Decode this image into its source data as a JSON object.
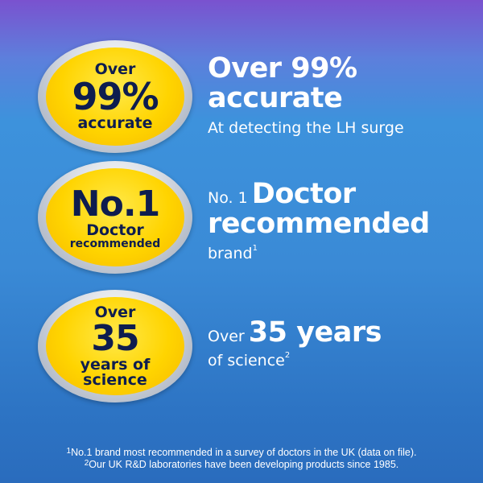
{
  "badges": [
    {
      "top": "Over",
      "big": "99%",
      "bottom": "accurate"
    },
    {
      "big": "No.1",
      "mid": "Doctor",
      "bottom": "recommended"
    },
    {
      "top": "Over",
      "big": "35",
      "mid": "years of",
      "bottom": "science"
    }
  ],
  "claims": [
    {
      "line1": "Over 99%",
      "line2": "accurate",
      "sub": "At detecting the LH surge"
    },
    {
      "prefix": "No. 1",
      "line1": "Doctor",
      "line2": "recommended",
      "sub": "brand",
      "sup": "1"
    },
    {
      "prefix": "Over",
      "line1": "35 years",
      "sub": "of science",
      "sup": "2"
    }
  ],
  "footnotes": [
    {
      "mark": "1",
      "text": "No.1 brand most recommended in a survey of doctors in the UK (data on file)."
    },
    {
      "mark": "2",
      "text": "Our UK R&D laboratories have been developing products since 1985."
    }
  ],
  "colors": {
    "badge_yellow": "#ffd400",
    "badge_text": "#0e1d4f",
    "bg_top": "#7a52cf",
    "bg_bottom": "#2a6cbd"
  }
}
